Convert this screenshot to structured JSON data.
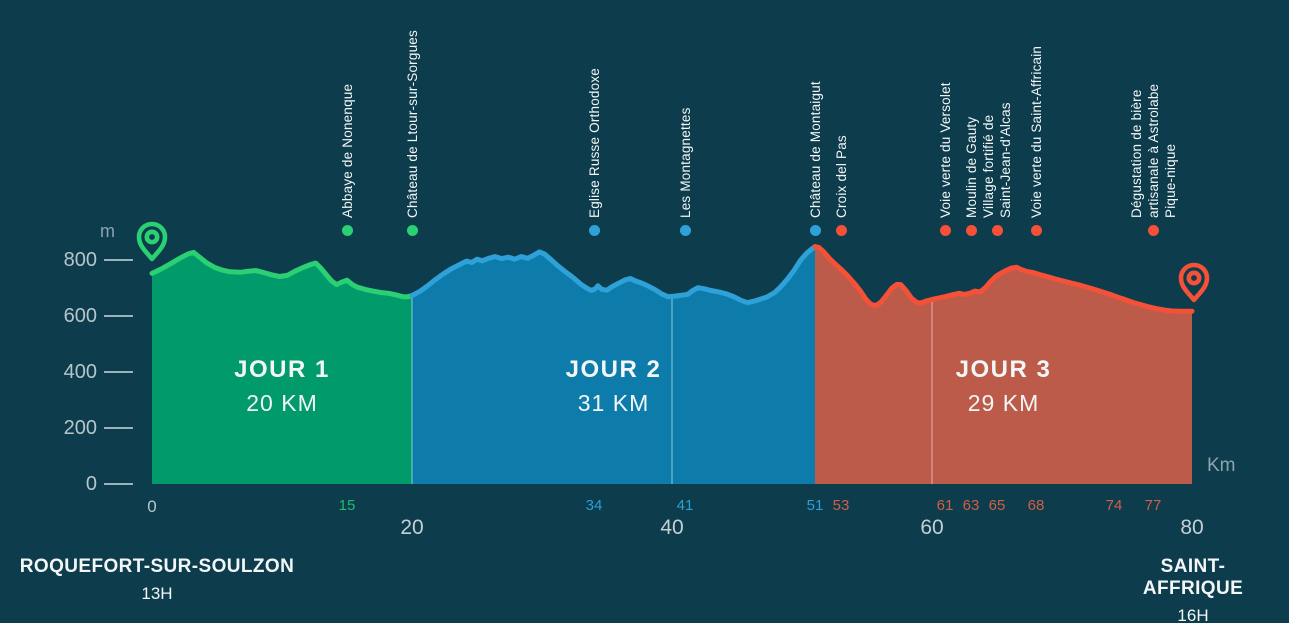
{
  "colors": {
    "background": "#0d3c4c",
    "day1_line": "#2ad071",
    "day1_fill": "#019a6a",
    "day2_line": "#2ea2d8",
    "day2_fill": "#0d7cab",
    "day3_line": "#f55138",
    "day3_fill": "#bc5b49",
    "day1_tick": "#1fbd6d",
    "day2_tick": "#2b9fd6",
    "day3_tick": "#d05f46",
    "axis_text": "#b7c5cb",
    "major_tick_text": "#c5d0d5",
    "unit_text": "#8ba4ad",
    "gridline": "#ffffff"
  },
  "y_axis": {
    "unit": "m",
    "ticks": [
      800,
      600,
      400,
      200,
      0
    ]
  },
  "x_axis": {
    "unit": "Km",
    "origin_label": "0",
    "major_ticks": [
      20,
      40,
      60,
      80
    ],
    "extra_waypoint_ticks": [
      {
        "km": 74,
        "day": 3
      }
    ]
  },
  "segments": [
    {
      "label": "JOUR 1",
      "distance": "20 KM",
      "start_km": 0,
      "end_km": 20,
      "day": 1
    },
    {
      "label": "JOUR 2",
      "distance": "31 KM",
      "start_km": 20,
      "end_km": 51,
      "day": 2
    },
    {
      "label": "JOUR 3",
      "distance": "29 KM",
      "start_km": 51,
      "end_km": 80,
      "day": 3
    }
  ],
  "waypoints": [
    {
      "name": "Abbaye de Nonenque",
      "lines": [
        "Abbaye de Nonenque"
      ],
      "km": 15,
      "day": 1,
      "show_tick": true
    },
    {
      "name": "Château de Ltour-sur-Sorgues",
      "lines": [
        "Château de Ltour-sur-Sorgues"
      ],
      "km": 20,
      "day": 1,
      "show_tick": false
    },
    {
      "name": "Eglise Russe Orthodoxe",
      "lines": [
        "Eglise Russe Orthodoxe"
      ],
      "km": 34,
      "day": 2,
      "show_tick": true
    },
    {
      "name": "Les Montagnettes",
      "lines": [
        "Les Montagnettes"
      ],
      "km": 41,
      "day": 2,
      "show_tick": true
    },
    {
      "name": "Château de Montaigut",
      "lines": [
        "Château de Montaigut"
      ],
      "km": 51,
      "day": 2,
      "show_tick": true
    },
    {
      "name": "Croix del Pas",
      "lines": [
        "Croix del Pas"
      ],
      "km": 53,
      "day": 3,
      "show_tick": true
    },
    {
      "name": "Voie verte du Versolet",
      "lines": [
        "Voie verte du Versolet"
      ],
      "km": 61,
      "day": 3,
      "show_tick": true
    },
    {
      "name": "Moulin de Gauty",
      "lines": [
        "Moulin de Gauty"
      ],
      "km": 63,
      "day": 3,
      "show_tick": true
    },
    {
      "name": "Village fortifié de Saint-Jean-d'Alcas",
      "lines": [
        "Village fortifié de",
        "Saint-Jean-d'Alcas"
      ],
      "km": 65,
      "day": 3,
      "show_tick": true
    },
    {
      "name": "Voie verte du Saint-Affricain",
      "lines": [
        "Voie verte du Saint-Affricain"
      ],
      "km": 68,
      "day": 3,
      "show_tick": true
    },
    {
      "name": "Dégustation de bière artisanale à Astrolabe Pique-nique",
      "lines": [
        "Dégustation de bière",
        "artisanale à Astrolabe",
        "Pique-nique"
      ],
      "km": 77,
      "day": 3,
      "show_tick": true
    }
  ],
  "endpoints": {
    "start": {
      "city": "ROQUEFORT-SUR-SOULZON",
      "time": "13H",
      "km": 0
    },
    "end": {
      "city": "SAINT-AFFRIQUE",
      "time": "16H",
      "km": 80
    }
  },
  "chart_data": {
    "type": "area",
    "title": "Elevation profile Roquefort-sur-Soulzon to Saint-Affrique (3-day route, 80 km)",
    "xlabel": "Km",
    "ylabel": "m",
    "xlim": [
      0,
      80
    ],
    "ylim": [
      0,
      900
    ],
    "x_major_ticks": [
      20,
      40,
      60,
      80
    ],
    "y_ticks": [
      0,
      200,
      400,
      600,
      800
    ],
    "legend_position": "none",
    "grid": "major-x-only",
    "series": [
      {
        "name": "JOUR 1 (20 KM)",
        "day": 1,
        "points": [
          [
            0,
            752
          ],
          [
            0.7,
            768
          ],
          [
            1.4,
            786
          ],
          [
            2.2,
            808
          ],
          [
            2.8,
            822
          ],
          [
            3.2,
            827
          ],
          [
            3.6,
            812
          ],
          [
            4.2,
            790
          ],
          [
            4.8,
            774
          ],
          [
            5.4,
            764
          ],
          [
            6,
            758
          ],
          [
            6.8,
            756
          ],
          [
            7.4,
            760
          ],
          [
            8,
            762
          ],
          [
            8.6,
            755
          ],
          [
            9.2,
            747
          ],
          [
            9.8,
            741
          ],
          [
            10.4,
            745
          ],
          [
            11,
            760
          ],
          [
            11.6,
            773
          ],
          [
            12.2,
            784
          ],
          [
            12.6,
            789
          ],
          [
            13,
            770
          ],
          [
            13.4,
            748
          ],
          [
            13.8,
            726
          ],
          [
            14.2,
            712
          ],
          [
            14.6,
            721
          ],
          [
            15,
            728
          ],
          [
            15.4,
            713
          ],
          [
            15.8,
            703
          ],
          [
            16.4,
            695
          ],
          [
            17,
            689
          ],
          [
            17.6,
            684
          ],
          [
            18.2,
            681
          ],
          [
            18.8,
            675
          ],
          [
            19.3,
            669
          ],
          [
            19.7,
            669
          ],
          [
            20,
            673
          ]
        ]
      },
      {
        "name": "JOUR 2 (31 KM)",
        "day": 2,
        "points": [
          [
            20,
            673
          ],
          [
            20.6,
            688
          ],
          [
            21.2,
            708
          ],
          [
            21.8,
            730
          ],
          [
            22.4,
            750
          ],
          [
            23,
            768
          ],
          [
            23.6,
            782
          ],
          [
            24.2,
            796
          ],
          [
            24.6,
            791
          ],
          [
            25,
            803
          ],
          [
            25.4,
            797
          ],
          [
            25.9,
            806
          ],
          [
            26.4,
            812
          ],
          [
            26.9,
            805
          ],
          [
            27.4,
            810
          ],
          [
            27.9,
            803
          ],
          [
            28.4,
            812
          ],
          [
            28.9,
            806
          ],
          [
            29.4,
            818
          ],
          [
            29.8,
            829
          ],
          [
            30.2,
            821
          ],
          [
            30.7,
            801
          ],
          [
            31.2,
            780
          ],
          [
            31.8,
            758
          ],
          [
            32.4,
            737
          ],
          [
            33,
            713
          ],
          [
            33.5,
            698
          ],
          [
            33.8,
            691
          ],
          [
            34.1,
            697
          ],
          [
            34.3,
            708
          ],
          [
            34.6,
            695
          ],
          [
            35,
            692
          ],
          [
            35.4,
            705
          ],
          [
            35.9,
            717
          ],
          [
            36.4,
            729
          ],
          [
            36.8,
            734
          ],
          [
            37.2,
            725
          ],
          [
            37.7,
            717
          ],
          [
            38.2,
            706
          ],
          [
            38.7,
            694
          ],
          [
            39.2,
            679
          ],
          [
            39.7,
            669
          ],
          [
            40.2,
            671
          ],
          [
            40.7,
            674
          ],
          [
            41.2,
            677
          ],
          [
            41.6,
            691
          ],
          [
            42,
            701
          ],
          [
            42.5,
            697
          ],
          [
            43,
            691
          ],
          [
            43.6,
            686
          ],
          [
            44.2,
            679
          ],
          [
            44.8,
            668
          ],
          [
            45.3,
            656
          ],
          [
            45.8,
            648
          ],
          [
            46.3,
            653
          ],
          [
            46.8,
            660
          ],
          [
            47.3,
            668
          ],
          [
            47.9,
            684
          ],
          [
            48.4,
            706
          ],
          [
            48.9,
            733
          ],
          [
            49.4,
            764
          ],
          [
            49.9,
            800
          ],
          [
            50.4,
            826
          ],
          [
            50.8,
            841
          ],
          [
            51,
            848
          ]
        ]
      },
      {
        "name": "JOUR 3 (29 KM)",
        "day": 3,
        "points": [
          [
            51,
            848
          ],
          [
            51.3,
            845
          ],
          [
            51.7,
            828
          ],
          [
            52.1,
            806
          ],
          [
            52.5,
            788
          ],
          [
            53,
            767
          ],
          [
            53.5,
            744
          ],
          [
            54,
            718
          ],
          [
            54.5,
            689
          ],
          [
            54.9,
            661
          ],
          [
            55.3,
            641
          ],
          [
            55.7,
            637
          ],
          [
            56.1,
            651
          ],
          [
            56.5,
            674
          ],
          [
            56.9,
            699
          ],
          [
            57.3,
            713
          ],
          [
            57.6,
            712
          ],
          [
            58,
            691
          ],
          [
            58.4,
            665
          ],
          [
            58.8,
            649
          ],
          [
            59.1,
            646
          ],
          [
            59.5,
            653
          ],
          [
            60,
            659
          ],
          [
            60.5,
            664
          ],
          [
            61,
            669
          ],
          [
            61.6,
            676
          ],
          [
            62.1,
            681
          ],
          [
            62.5,
            677
          ],
          [
            62.9,
            681
          ],
          [
            63.3,
            689
          ],
          [
            63.7,
            686
          ],
          [
            64.1,
            701
          ],
          [
            64.5,
            723
          ],
          [
            64.9,
            741
          ],
          [
            65.3,
            753
          ],
          [
            65.7,
            763
          ],
          [
            66.1,
            771
          ],
          [
            66.5,
            774
          ],
          [
            66.9,
            765
          ],
          [
            67.3,
            759
          ],
          [
            67.8,
            755
          ],
          [
            68.3,
            748
          ],
          [
            68.9,
            740
          ],
          [
            69.5,
            732
          ],
          [
            70.1,
            725
          ],
          [
            70.7,
            718
          ],
          [
            71.3,
            711
          ],
          [
            71.9,
            703
          ],
          [
            72.5,
            695
          ],
          [
            73.1,
            686
          ],
          [
            73.7,
            677
          ],
          [
            74.3,
            667
          ],
          [
            74.9,
            658
          ],
          [
            75.5,
            648
          ],
          [
            76.1,
            640
          ],
          [
            76.7,
            632
          ],
          [
            77.3,
            626
          ],
          [
            77.9,
            621
          ],
          [
            78.5,
            618
          ],
          [
            79.2,
            617
          ],
          [
            80,
            617
          ]
        ]
      }
    ]
  }
}
